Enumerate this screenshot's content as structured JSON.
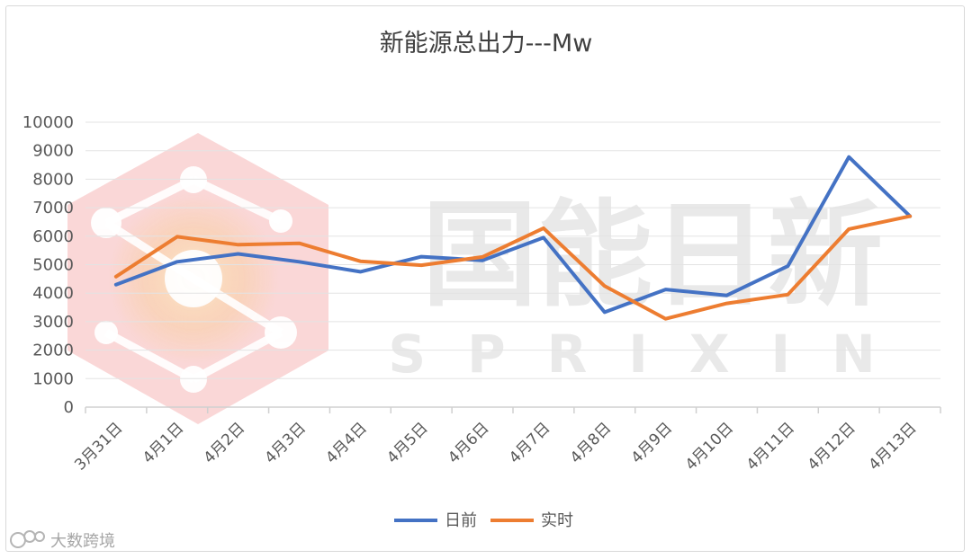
{
  "watermark": {
    "text": "国能日新",
    "subtext": "SPRIXIN",
    "credit": "大数跨境",
    "colors": {
      "text": "#e9e9e9",
      "logo": "#ef9a9a",
      "logo_glow": "#f7c58a"
    }
  },
  "chart_data": {
    "type": "line",
    "title": "新能源总出力---Mw",
    "xlabel": "",
    "ylabel": "",
    "categories": [
      "3月31日",
      "4月1日",
      "4月2日",
      "4月3日",
      "4月4日",
      "4月5日",
      "4月6日",
      "4月7日",
      "4月8日",
      "4月9日",
      "4月10日",
      "4月11日",
      "4月12日",
      "4月13日"
    ],
    "series": [
      {
        "name": "日前",
        "color": "#4472c4",
        "values": [
          4300,
          5100,
          5380,
          5100,
          4750,
          5280,
          5150,
          5950,
          3330,
          4130,
          3920,
          4950,
          8780,
          6700
        ]
      },
      {
        "name": "实时",
        "color": "#ed7d31",
        "values": [
          4580,
          5980,
          5700,
          5750,
          5120,
          4980,
          5270,
          6280,
          4250,
          3100,
          3640,
          3950,
          6250,
          6700
        ]
      }
    ],
    "ylim": [
      0,
      10000
    ],
    "yticks": [
      0,
      1000,
      2000,
      3000,
      4000,
      5000,
      6000,
      7000,
      8000,
      9000,
      10000
    ],
    "grid": true,
    "legend": "bottom-center",
    "colors": {
      "grid": "#e3e3e3",
      "axis": "#d0d0d0"
    }
  }
}
